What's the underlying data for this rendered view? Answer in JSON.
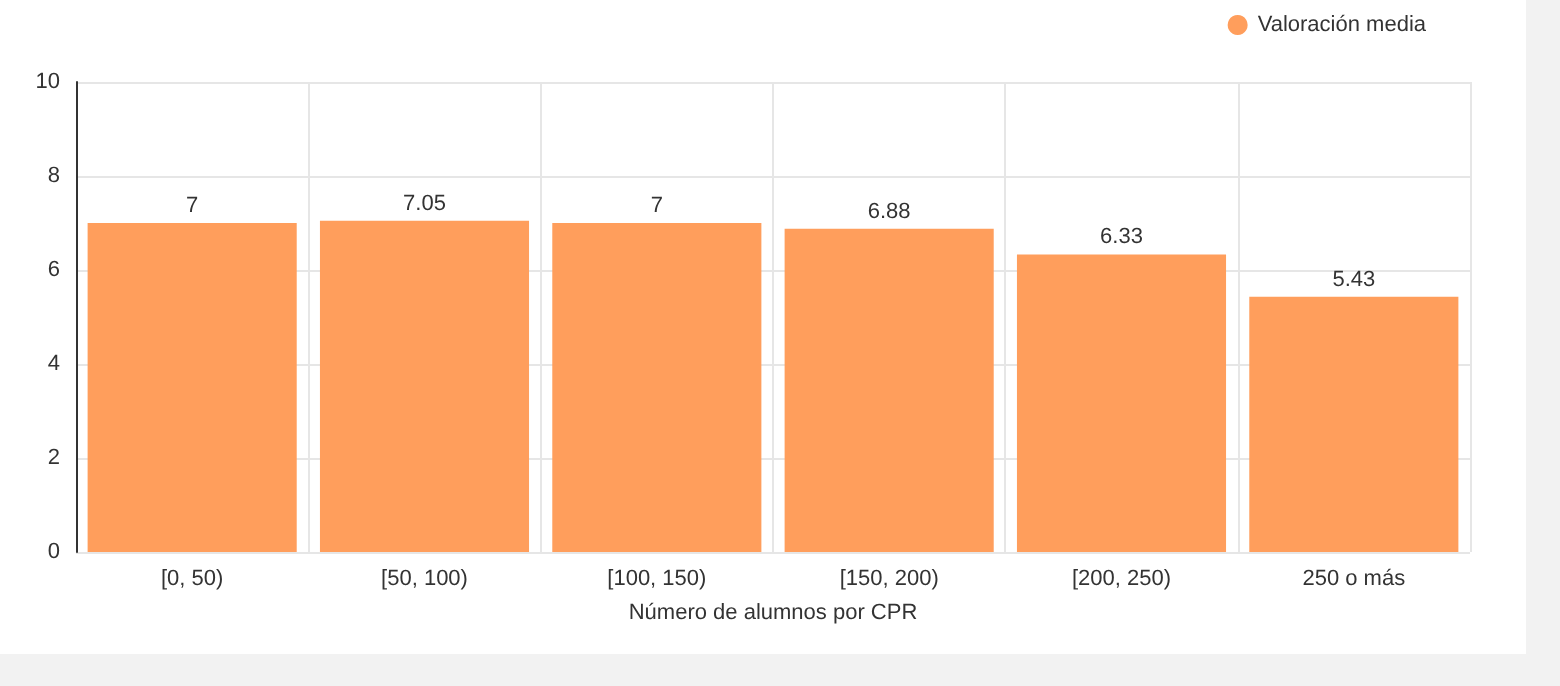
{
  "chart_data": {
    "type": "bar",
    "xlabel": "Número de alumnos por CPR",
    "categories": [
      "[0, 50)",
      "[50, 100)",
      "[100, 150)",
      "[150, 200)",
      "[200, 250)",
      "250 o más"
    ],
    "series": [
      {
        "name": "Valoración media",
        "color": "#ff9e5c",
        "values": [
          7,
          7.05,
          7,
          6.88,
          6.33,
          5.43
        ]
      }
    ],
    "ylim": [
      0,
      10
    ],
    "yticks": [
      0,
      2,
      4,
      6,
      8,
      10
    ],
    "grid": true,
    "legend": "top right",
    "data_labels": true
  }
}
